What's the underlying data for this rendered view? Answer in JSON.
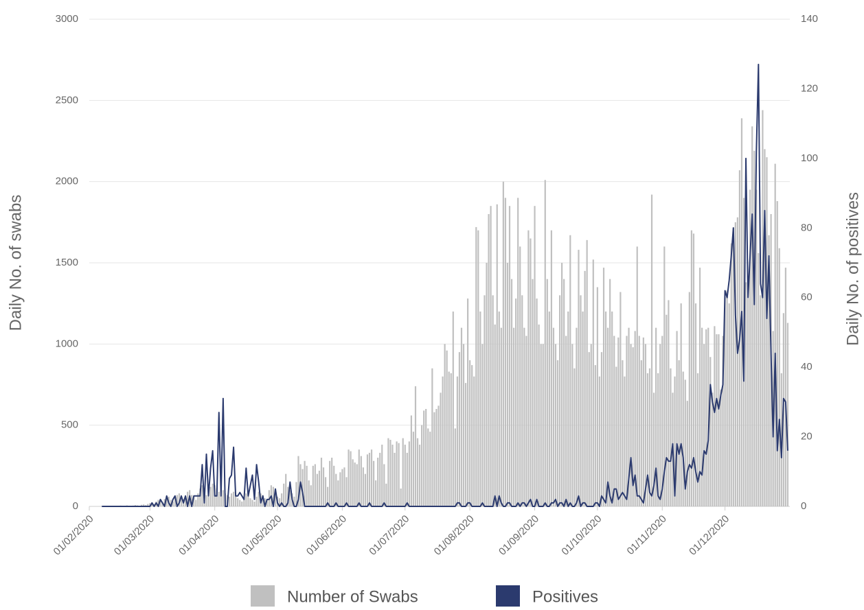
{
  "chart_data": {
    "type": "bar-line",
    "y_label": "Daily No. of swabs",
    "y2_label": "Daily No. of positives",
    "xlim": [
      "2020-02-01",
      "2021-01-01"
    ],
    "xticks": [
      {
        "value": "2020-02-01",
        "label": "01/02/2020"
      },
      {
        "value": "2020-03-01",
        "label": "01/03/2020"
      },
      {
        "value": "2020-04-01",
        "label": "01/04/2020"
      },
      {
        "value": "2020-05-01",
        "label": "01/05/2020"
      },
      {
        "value": "2020-06-01",
        "label": "01/06/2020"
      },
      {
        "value": "2020-07-01",
        "label": "01/07/2020"
      },
      {
        "value": "2020-08-01",
        "label": "01/08/2020"
      },
      {
        "value": "2020-09-01",
        "label": "01/09/2020"
      },
      {
        "value": "2020-10-01",
        "label": "01/10/2020"
      },
      {
        "value": "2020-11-01",
        "label": "01/11/2020"
      },
      {
        "value": "2020-12-01",
        "label": "01/12/2020"
      }
    ],
    "ylim": [
      0,
      3000
    ],
    "yticks": [
      0,
      500,
      1000,
      1500,
      2000,
      2500,
      3000
    ],
    "y2lim": [
      0,
      140
    ],
    "y2ticks": [
      0,
      20,
      40,
      60,
      80,
      100,
      120,
      140
    ],
    "grid": true,
    "x": [
      "2020-02-07",
      "2020-02-08",
      "2020-02-09",
      "2020-02-10",
      "2020-02-11",
      "2020-02-12",
      "2020-02-13",
      "2020-02-14",
      "2020-02-15",
      "2020-02-16",
      "2020-02-17",
      "2020-02-18",
      "2020-02-19",
      "2020-02-20",
      "2020-02-21",
      "2020-02-22",
      "2020-02-23",
      "2020-02-24",
      "2020-02-25",
      "2020-02-26",
      "2020-02-27",
      "2020-02-28",
      "2020-02-29",
      "2020-03-01",
      "2020-03-02",
      "2020-03-03",
      "2020-03-04",
      "2020-03-05",
      "2020-03-06",
      "2020-03-07",
      "2020-03-08",
      "2020-03-09",
      "2020-03-10",
      "2020-03-11",
      "2020-03-12",
      "2020-03-13",
      "2020-03-14",
      "2020-03-15",
      "2020-03-16",
      "2020-03-17",
      "2020-03-18",
      "2020-03-19",
      "2020-03-20",
      "2020-03-21",
      "2020-03-22",
      "2020-03-23",
      "2020-03-24",
      "2020-03-25",
      "2020-03-26",
      "2020-03-27",
      "2020-03-28",
      "2020-03-29",
      "2020-03-30",
      "2020-03-31",
      "2020-04-01",
      "2020-04-02",
      "2020-04-03",
      "2020-04-04",
      "2020-04-05",
      "2020-04-06",
      "2020-04-07",
      "2020-04-08",
      "2020-04-09",
      "2020-04-10",
      "2020-04-11",
      "2020-04-12",
      "2020-04-13",
      "2020-04-14",
      "2020-04-15",
      "2020-04-16",
      "2020-04-17",
      "2020-04-18",
      "2020-04-19",
      "2020-04-20",
      "2020-04-21",
      "2020-04-22",
      "2020-04-23",
      "2020-04-24",
      "2020-04-25",
      "2020-04-26",
      "2020-04-27",
      "2020-04-28",
      "2020-04-29",
      "2020-04-30",
      "2020-05-01",
      "2020-05-02",
      "2020-05-03",
      "2020-05-04",
      "2020-05-05",
      "2020-05-06",
      "2020-05-07",
      "2020-05-08",
      "2020-05-09",
      "2020-05-10",
      "2020-05-11",
      "2020-05-12",
      "2020-05-13",
      "2020-05-14",
      "2020-05-15",
      "2020-05-16",
      "2020-05-17",
      "2020-05-18",
      "2020-05-19",
      "2020-05-20",
      "2020-05-21",
      "2020-05-22",
      "2020-05-23",
      "2020-05-24",
      "2020-05-25",
      "2020-05-26",
      "2020-05-27",
      "2020-05-28",
      "2020-05-29",
      "2020-05-30",
      "2020-05-31",
      "2020-06-01",
      "2020-06-02",
      "2020-06-03",
      "2020-06-04",
      "2020-06-05",
      "2020-06-06",
      "2020-06-07",
      "2020-06-08",
      "2020-06-09",
      "2020-06-10",
      "2020-06-11",
      "2020-06-12",
      "2020-06-13",
      "2020-06-14",
      "2020-06-15",
      "2020-06-16",
      "2020-06-17",
      "2020-06-18",
      "2020-06-19",
      "2020-06-20",
      "2020-06-21",
      "2020-06-22",
      "2020-06-23",
      "2020-06-24",
      "2020-06-25",
      "2020-06-26",
      "2020-06-27",
      "2020-06-28",
      "2020-06-29",
      "2020-06-30",
      "2020-07-01",
      "2020-07-02",
      "2020-07-03",
      "2020-07-04",
      "2020-07-05",
      "2020-07-06",
      "2020-07-07",
      "2020-07-08",
      "2020-07-09",
      "2020-07-10",
      "2020-07-11",
      "2020-07-12",
      "2020-07-13",
      "2020-07-14",
      "2020-07-15",
      "2020-07-16",
      "2020-07-17",
      "2020-07-18",
      "2020-07-19",
      "2020-07-20",
      "2020-07-21",
      "2020-07-22",
      "2020-07-23",
      "2020-07-24",
      "2020-07-25",
      "2020-07-26",
      "2020-07-27",
      "2020-07-28",
      "2020-07-29",
      "2020-07-30",
      "2020-07-31",
      "2020-08-01",
      "2020-08-02",
      "2020-08-03",
      "2020-08-04",
      "2020-08-05",
      "2020-08-06",
      "2020-08-07",
      "2020-08-08",
      "2020-08-09",
      "2020-08-10",
      "2020-08-11",
      "2020-08-12",
      "2020-08-13",
      "2020-08-14",
      "2020-08-15",
      "2020-08-16",
      "2020-08-17",
      "2020-08-18",
      "2020-08-19",
      "2020-08-20",
      "2020-08-21",
      "2020-08-22",
      "2020-08-23",
      "2020-08-24",
      "2020-08-25",
      "2020-08-26",
      "2020-08-27",
      "2020-08-28",
      "2020-08-29",
      "2020-08-30",
      "2020-08-31",
      "2020-09-01",
      "2020-09-02",
      "2020-09-03",
      "2020-09-04",
      "2020-09-05",
      "2020-09-06",
      "2020-09-07",
      "2020-09-08",
      "2020-09-09",
      "2020-09-10",
      "2020-09-11",
      "2020-09-12",
      "2020-09-13",
      "2020-09-14",
      "2020-09-15",
      "2020-09-16",
      "2020-09-17",
      "2020-09-18",
      "2020-09-19",
      "2020-09-20",
      "2020-09-21",
      "2020-09-22",
      "2020-09-23",
      "2020-09-24",
      "2020-09-25",
      "2020-09-26",
      "2020-09-27",
      "2020-09-28",
      "2020-09-29",
      "2020-09-30",
      "2020-10-01",
      "2020-10-02",
      "2020-10-03",
      "2020-10-04",
      "2020-10-05",
      "2020-10-06",
      "2020-10-07",
      "2020-10-08",
      "2020-10-09",
      "2020-10-10",
      "2020-10-11",
      "2020-10-12",
      "2020-10-13",
      "2020-10-14",
      "2020-10-15",
      "2020-10-16",
      "2020-10-17",
      "2020-10-18",
      "2020-10-19",
      "2020-10-20",
      "2020-10-21",
      "2020-10-22",
      "2020-10-23",
      "2020-10-24",
      "2020-10-25",
      "2020-10-26",
      "2020-10-27",
      "2020-10-28",
      "2020-10-29",
      "2020-10-30",
      "2020-10-31",
      "2020-11-01",
      "2020-11-02",
      "2020-11-03",
      "2020-11-04",
      "2020-11-05",
      "2020-11-06",
      "2020-11-07",
      "2020-11-08",
      "2020-11-09",
      "2020-11-10",
      "2020-11-11",
      "2020-11-12",
      "2020-11-13",
      "2020-11-14",
      "2020-11-15",
      "2020-11-16",
      "2020-11-17",
      "2020-11-18",
      "2020-11-19",
      "2020-11-20",
      "2020-11-21",
      "2020-11-22",
      "2020-11-23",
      "2020-11-24",
      "2020-11-25",
      "2020-11-26",
      "2020-11-27",
      "2020-11-28",
      "2020-11-29",
      "2020-11-30",
      "2020-12-01",
      "2020-12-02",
      "2020-12-03",
      "2020-12-04",
      "2020-12-05",
      "2020-12-06",
      "2020-12-07",
      "2020-12-08",
      "2020-12-09",
      "2020-12-10",
      "2020-12-11",
      "2020-12-12",
      "2020-12-13",
      "2020-12-14",
      "2020-12-15",
      "2020-12-16",
      "2020-12-17",
      "2020-12-18",
      "2020-12-19",
      "2020-12-20",
      "2020-12-21",
      "2020-12-22",
      "2020-12-23",
      "2020-12-24",
      "2020-12-25",
      "2020-12-26",
      "2020-12-27",
      "2020-12-28",
      "2020-12-29",
      "2020-12-30",
      "2020-12-31"
    ],
    "series": [
      {
        "name": "Number of Swabs",
        "type": "bar",
        "axis": "y",
        "color": "#c0c0c0",
        "values": [
          2,
          1,
          3,
          0,
          2,
          4,
          1,
          3,
          2,
          5,
          3,
          2,
          6,
          4,
          3,
          5,
          8,
          6,
          4,
          10,
          12,
          8,
          15,
          20,
          25,
          15,
          30,
          40,
          35,
          20,
          45,
          50,
          60,
          40,
          30,
          55,
          70,
          80,
          60,
          45,
          50,
          90,
          100,
          70,
          60,
          40,
          80,
          110,
          130,
          90,
          70,
          60,
          120,
          140,
          130,
          110,
          90,
          120,
          100,
          80,
          70,
          60,
          80,
          90,
          70,
          50,
          40,
          30,
          60,
          80,
          70,
          50,
          40,
          30,
          60,
          90,
          80,
          70,
          50,
          40,
          100,
          130,
          120,
          100,
          60,
          50,
          80,
          140,
          200,
          120,
          100,
          80,
          60,
          150,
          310,
          260,
          230,
          280,
          250,
          160,
          130,
          250,
          260,
          200,
          220,
          300,
          240,
          180,
          120,
          280,
          300,
          250,
          200,
          160,
          210,
          230,
          240,
          180,
          350,
          340,
          290,
          270,
          260,
          350,
          310,
          240,
          200,
          320,
          330,
          350,
          280,
          160,
          300,
          330,
          380,
          260,
          140,
          420,
          410,
          380,
          330,
          400,
          390,
          110,
          420,
          380,
          330,
          400,
          560,
          460,
          740,
          420,
          380,
          500,
          590,
          600,
          480,
          460,
          850,
          580,
          600,
          620,
          700,
          800,
          1000,
          960,
          830,
          820,
          1200,
          480,
          800,
          950,
          1100,
          1000,
          760,
          1280,
          900,
          870,
          800,
          1720,
          1700,
          1200,
          1000,
          1300,
          1500,
          1800,
          1850,
          1300,
          1120,
          1860,
          1200,
          1100,
          2000,
          1900,
          1500,
          1850,
          1400,
          1100,
          1280,
          1900,
          1600,
          1300,
          1100,
          1050,
          1700,
          1650,
          1400,
          1850,
          1280,
          1120,
          1000,
          1000,
          2010,
          1400,
          1200,
          1700,
          1100,
          1000,
          900,
          1300,
          1500,
          1400,
          1050,
          1200,
          1670,
          1000,
          850,
          1100,
          1580,
          1300,
          1200,
          1450,
          1640,
          950,
          1000,
          1520,
          870,
          1350,
          800,
          950,
          1470,
          1200,
          1100,
          1400,
          1200,
          1050,
          860,
          1040,
          1320,
          900,
          800,
          1050,
          1100,
          1000,
          980,
          1080,
          1600,
          1050,
          900,
          1040,
          1000,
          820,
          850,
          1920,
          700,
          1100,
          820,
          1000,
          1050,
          1600,
          1180,
          1270,
          850,
          700,
          800,
          1080,
          900,
          1250,
          830,
          780,
          650,
          1320,
          1700,
          1680,
          1250,
          820,
          1470,
          1100,
          1000,
          1090,
          1100,
          920,
          700,
          1110,
          1060,
          1060,
          720,
          1050,
          1290,
          1330,
          1250,
          1620,
          1720,
          1750,
          1780,
          2070,
          2390,
          1900,
          1380,
          1280,
          1950,
          2340,
          2190,
          1950,
          1560,
          1300,
          2440,
          2200,
          2150,
          1670,
          1800,
          1080,
          2110,
          1880,
          1590,
          820,
          1190,
          1470,
          1130
        ]
      },
      {
        "name": "Positives",
        "type": "line",
        "axis": "y2",
        "color": "#2b3a6e",
        "values": [
          0,
          0,
          0,
          0,
          0,
          0,
          0,
          0,
          0,
          0,
          0,
          0,
          0,
          0,
          0,
          0,
          0,
          0,
          0,
          0,
          0,
          0,
          0,
          0,
          1,
          0,
          1,
          0,
          2,
          1,
          0,
          3,
          1,
          0,
          2,
          3,
          0,
          1,
          3,
          1,
          3,
          0,
          3,
          0,
          3,
          3,
          3,
          3,
          12,
          1,
          15,
          3,
          11,
          16,
          3,
          3,
          27,
          3,
          31,
          0,
          0,
          8,
          9,
          17,
          3,
          3,
          4,
          3,
          2,
          11,
          3,
          6,
          9,
          2,
          12,
          7,
          1,
          3,
          0,
          2,
          2,
          3,
          0,
          5,
          1,
          0,
          1,
          0,
          0,
          1,
          7,
          2,
          0,
          0,
          2,
          7,
          4,
          0,
          0,
          0,
          0,
          0,
          0,
          0,
          0,
          0,
          0,
          0,
          1,
          0,
          0,
          0,
          1,
          0,
          0,
          0,
          0,
          1,
          0,
          0,
          0,
          0,
          0,
          1,
          0,
          0,
          0,
          0,
          1,
          0,
          0,
          0,
          0,
          0,
          0,
          1,
          0,
          0,
          0,
          0,
          0,
          0,
          0,
          0,
          0,
          0,
          1,
          0,
          0,
          0,
          0,
          0,
          0,
          0,
          0,
          0,
          0,
          0,
          0,
          0,
          0,
          0,
          0,
          0,
          0,
          0,
          0,
          0,
          0,
          0,
          1,
          1,
          0,
          0,
          0,
          1,
          1,
          0,
          0,
          0,
          0,
          0,
          1,
          0,
          0,
          0,
          0,
          0,
          3,
          0,
          3,
          1,
          0,
          0,
          1,
          1,
          0,
          0,
          0,
          1,
          0,
          1,
          1,
          0,
          1,
          2,
          0,
          0,
          2,
          0,
          0,
          0,
          1,
          0,
          0,
          1,
          1,
          2,
          0,
          1,
          1,
          0,
          2,
          0,
          1,
          0,
          0,
          1,
          3,
          0,
          1,
          1,
          0,
          0,
          0,
          0,
          1,
          1,
          0,
          3,
          2,
          1,
          7,
          3,
          1,
          5,
          5,
          2,
          3,
          4,
          3,
          2,
          8,
          14,
          6,
          9,
          3,
          3,
          2,
          1,
          5,
          9,
          4,
          3,
          6,
          11,
          3,
          2,
          5,
          10,
          14,
          13,
          13,
          18,
          3,
          18,
          15,
          18,
          14,
          5,
          10,
          12,
          11,
          14,
          10,
          7,
          10,
          9,
          16,
          15,
          19,
          35,
          30,
          27,
          31,
          28,
          32,
          35,
          62,
          60,
          65,
          72,
          80,
          55,
          44,
          48,
          56,
          36,
          100,
          60,
          72,
          84,
          58,
          102,
          127,
          64,
          60,
          85,
          54,
          72,
          44,
          20,
          44,
          16,
          25,
          14,
          31,
          30,
          16
        ]
      }
    ]
  }
}
